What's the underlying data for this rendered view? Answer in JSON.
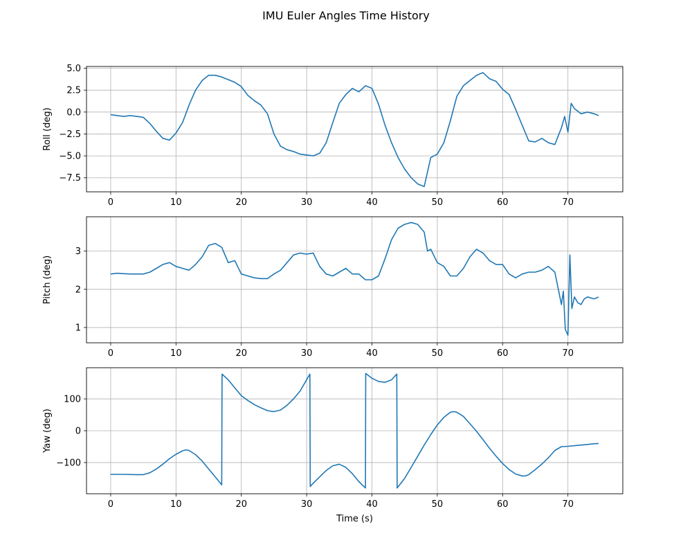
{
  "figure": {
    "title": "IMU Euler Angles Time History"
  },
  "chart_data": [
    {
      "type": "line",
      "title": "",
      "xlabel": "",
      "ylabel": "Roll (deg)",
      "xlim": [
        -3.7,
        78.4
      ],
      "ylim": [
        -9.1,
        5.2
      ],
      "xticks": [
        0,
        10,
        20,
        30,
        40,
        50,
        60,
        70
      ],
      "yticks": [
        -7.5,
        -5.0,
        -2.5,
        0.0,
        2.5,
        5.0
      ],
      "ytick_labels": [
        "−7.5",
        "−5.0",
        "−2.5",
        "0.0",
        "2.5",
        "5.0"
      ],
      "grid": true,
      "series": [
        {
          "color": "#1f77b4",
          "x": [
            0,
            1,
            2,
            3,
            4,
            5,
            6,
            7,
            8,
            9,
            10,
            11,
            12,
            13,
            14,
            15,
            16,
            17,
            18,
            19,
            20,
            21,
            22,
            23,
            24,
            25,
            26,
            27,
            28,
            29,
            30,
            31,
            32,
            33,
            34,
            35,
            36,
            37,
            38,
            39,
            40,
            41,
            42,
            43,
            44,
            45,
            46,
            47,
            48,
            49,
            50,
            51,
            52,
            53,
            54,
            55,
            56,
            57,
            58,
            59,
            60,
            61,
            62,
            63,
            64,
            65,
            66,
            67,
            68,
            69,
            69.5,
            70,
            70.5,
            71,
            72,
            73,
            74,
            74.7
          ],
          "values": [
            -0.3,
            -0.4,
            -0.5,
            -0.4,
            -0.5,
            -0.6,
            -1.3,
            -2.2,
            -3.0,
            -3.2,
            -2.4,
            -1.2,
            0.8,
            2.5,
            3.6,
            4.2,
            4.2,
            4.0,
            3.7,
            3.4,
            2.9,
            1.9,
            1.3,
            0.8,
            -0.2,
            -2.5,
            -3.9,
            -4.3,
            -4.5,
            -4.8,
            -4.9,
            -5.0,
            -4.7,
            -3.5,
            -1.2,
            1.0,
            2.0,
            2.7,
            2.3,
            3.0,
            2.7,
            0.9,
            -1.5,
            -3.5,
            -5.2,
            -6.5,
            -7.5,
            -8.2,
            -8.5,
            -5.2,
            -4.8,
            -3.5,
            -1.0,
            1.8,
            3.0,
            3.6,
            4.2,
            4.5,
            3.8,
            3.5,
            2.6,
            2.0,
            0.3,
            -1.5,
            -3.3,
            -3.4,
            -3.0,
            -3.5,
            -3.7,
            -1.8,
            -0.5,
            -2.3,
            1.0,
            0.4,
            -0.2,
            0.0,
            -0.2,
            -0.4
          ]
        }
      ]
    },
    {
      "type": "line",
      "title": "",
      "xlabel": "",
      "ylabel": "Pitch (deg)",
      "xlim": [
        -3.7,
        78.4
      ],
      "ylim": [
        0.6,
        3.9
      ],
      "xticks": [
        0,
        10,
        20,
        30,
        40,
        50,
        60,
        70
      ],
      "yticks": [
        1,
        2,
        3
      ],
      "ytick_labels": [
        "1",
        "2",
        "3"
      ],
      "grid": true,
      "series": [
        {
          "color": "#1f77b4",
          "x": [
            0,
            1,
            2,
            3,
            4,
            5,
            6,
            7,
            8,
            9,
            10,
            11,
            12,
            13,
            14,
            15,
            16,
            17,
            18,
            19,
            20,
            21,
            22,
            23,
            24,
            25,
            26,
            27,
            28,
            29,
            30,
            31,
            32,
            33,
            34,
            35,
            36,
            37,
            38,
            39,
            40,
            41,
            42,
            43,
            44,
            45,
            46,
            47,
            48,
            48.5,
            49,
            50,
            51,
            52,
            53,
            54,
            55,
            56,
            57,
            58,
            59,
            60,
            61,
            62,
            63,
            64,
            65,
            66,
            67,
            68,
            69,
            69.3,
            69.6,
            70,
            70.3,
            70.6,
            71,
            71.5,
            72,
            72.5,
            73,
            74,
            74.7
          ],
          "values": [
            2.4,
            2.42,
            2.41,
            2.4,
            2.4,
            2.4,
            2.45,
            2.55,
            2.65,
            2.7,
            2.6,
            2.55,
            2.5,
            2.65,
            2.85,
            3.15,
            3.2,
            3.1,
            2.7,
            2.75,
            2.4,
            2.35,
            2.3,
            2.28,
            2.28,
            2.4,
            2.5,
            2.7,
            2.9,
            2.95,
            2.92,
            2.95,
            2.6,
            2.4,
            2.35,
            2.45,
            2.55,
            2.4,
            2.4,
            2.25,
            2.25,
            2.35,
            2.8,
            3.3,
            3.6,
            3.7,
            3.75,
            3.7,
            3.5,
            3.0,
            3.05,
            2.7,
            2.6,
            2.35,
            2.35,
            2.55,
            2.85,
            3.05,
            2.95,
            2.75,
            2.65,
            2.65,
            2.4,
            2.3,
            2.4,
            2.45,
            2.45,
            2.5,
            2.6,
            2.45,
            1.6,
            1.95,
            0.95,
            0.8,
            2.9,
            1.5,
            1.8,
            1.65,
            1.6,
            1.75,
            1.8,
            1.75,
            1.8
          ]
        }
      ]
    },
    {
      "type": "line",
      "title": "",
      "xlabel": "Time (s)",
      "ylabel": "Yaw (deg)",
      "xlim": [
        -3.7,
        78.4
      ],
      "ylim": [
        -198,
        198
      ],
      "xticks": [
        0,
        10,
        20,
        30,
        40,
        50,
        60,
        70
      ],
      "yticks": [
        -100,
        0,
        100
      ],
      "ytick_labels": [
        "−100",
        "0",
        "100"
      ],
      "grid": true,
      "series": [
        {
          "color": "#1f77b4",
          "x": [
            0,
            2,
            4,
            5,
            6,
            7,
            8,
            9,
            10,
            11,
            11.5,
            12,
            13,
            14,
            15,
            16,
            17,
            17.05,
            18,
            19,
            20,
            21,
            22,
            23,
            24,
            25,
            26,
            27,
            28,
            29,
            30.5,
            30.55,
            31,
            32,
            33,
            34,
            35,
            36,
            37,
            38,
            39,
            39.05,
            40,
            41,
            42,
            43,
            43.8,
            43.85,
            45,
            46,
            47,
            48,
            49,
            50,
            51,
            52,
            52.5,
            53,
            54,
            55,
            56,
            57,
            58,
            59,
            60,
            61,
            62,
            63,
            63.5,
            64,
            65,
            66,
            67,
            68,
            69,
            70,
            71,
            72,
            73,
            74,
            74.7
          ],
          "values": [
            -137,
            -137,
            -138,
            -138,
            -132,
            -120,
            -105,
            -88,
            -74,
            -63,
            -60,
            -62,
            -75,
            -95,
            -120,
            -145,
            -170,
            178,
            160,
            135,
            110,
            95,
            82,
            72,
            63,
            60,
            65,
            80,
            100,
            125,
            178,
            -175,
            -165,
            -145,
            -125,
            -110,
            -105,
            -115,
            -135,
            -160,
            -180,
            180,
            165,
            155,
            152,
            160,
            178,
            -180,
            -150,
            -115,
            -80,
            -45,
            -12,
            18,
            42,
            58,
            60,
            58,
            45,
            22,
            -2,
            -28,
            -55,
            -80,
            -103,
            -122,
            -136,
            -142,
            -142,
            -138,
            -122,
            -105,
            -85,
            -62,
            -50,
            -49,
            -47,
            -45,
            -43,
            -41,
            -40
          ]
        }
      ]
    }
  ]
}
